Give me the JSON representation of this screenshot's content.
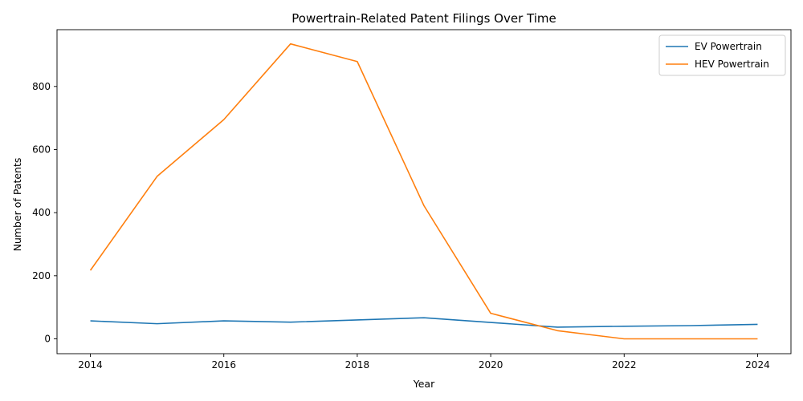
{
  "chart_data": {
    "type": "line",
    "title": "Powertrain-Related Patent Filings Over Time",
    "xlabel": "Year",
    "ylabel": "Number of Patents",
    "x": [
      2014,
      2015,
      2016,
      2017,
      2018,
      2019,
      2020,
      2021,
      2022,
      2023,
      2024
    ],
    "xlim": [
      2013.5,
      2024.5
    ],
    "ylim": [
      -47,
      980
    ],
    "xticks": [
      2014,
      2016,
      2018,
      2020,
      2022,
      2024
    ],
    "yticks": [
      0,
      200,
      400,
      600,
      800
    ],
    "grid": false,
    "legend_position": "top-right",
    "series": [
      {
        "name": "EV Powertrain",
        "color": "#1f77b4",
        "values": [
          57,
          48,
          57,
          53,
          60,
          67,
          52,
          37,
          40,
          42,
          46
        ]
      },
      {
        "name": "HEV Powertrain",
        "color": "#ff7f0e",
        "values": [
          217,
          515,
          695,
          935,
          879,
          422,
          81,
          26,
          0,
          0,
          0
        ]
      }
    ]
  }
}
